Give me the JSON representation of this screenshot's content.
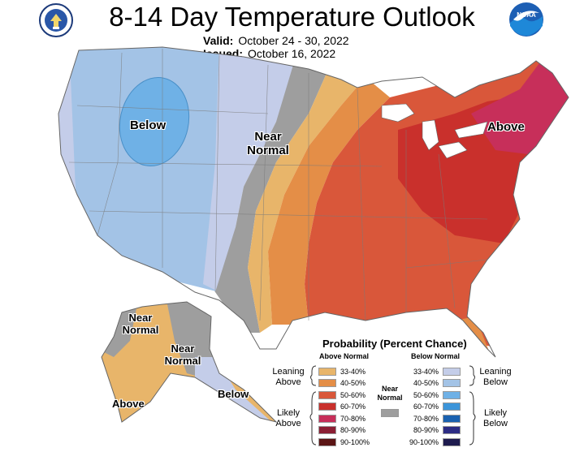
{
  "title": "8-14 Day Temperature Outlook",
  "valid_label": "Valid:",
  "valid_value": "October 24 - 30, 2022",
  "issued_label": "Issued:",
  "issued_value": "October 16, 2022",
  "logos": {
    "left": "doc-seal-icon",
    "right": "noaa-logo-icon"
  },
  "map_labels": {
    "below_west": "Below",
    "near_normal_plains": "Near Normal",
    "above_east": "Above",
    "near_normal_ak_west": "Near Normal",
    "near_normal_ak_east": "Near Normal",
    "above_ak": "Above",
    "below_ak": "Below"
  },
  "legend": {
    "title": "Probability (Percent Chance)",
    "above_header": "Above Normal",
    "below_header": "Below Normal",
    "above": [
      {
        "range": "33-40%",
        "color": "#e8b56a"
      },
      {
        "range": "40-50%",
        "color": "#e48e47"
      },
      {
        "range": "50-60%",
        "color": "#d9573a"
      },
      {
        "range": "60-70%",
        "color": "#c9302c"
      },
      {
        "range": "70-80%",
        "color": "#c72f5a"
      },
      {
        "range": "80-90%",
        "color": "#8b1f34"
      },
      {
        "range": "90-100%",
        "color": "#5b1515"
      }
    ],
    "below": [
      {
        "range": "33-40%",
        "color": "#c4cde9"
      },
      {
        "range": "40-50%",
        "color": "#a3c3e6"
      },
      {
        "range": "50-60%",
        "color": "#6fb1e6"
      },
      {
        "range": "60-70%",
        "color": "#3b94d9"
      },
      {
        "range": "70-80%",
        "color": "#1a61b0"
      },
      {
        "range": "80-90%",
        "color": "#2c2c84"
      },
      {
        "range": "90-100%",
        "color": "#1e1b4e"
      }
    ],
    "near_normal": {
      "label": "Near Normal",
      "color": "#9e9e9e"
    },
    "leaning_above": "Leaning Above",
    "likely_above": "Likely Above",
    "leaning_below": "Leaning Below",
    "likely_below": "Likely Below"
  }
}
